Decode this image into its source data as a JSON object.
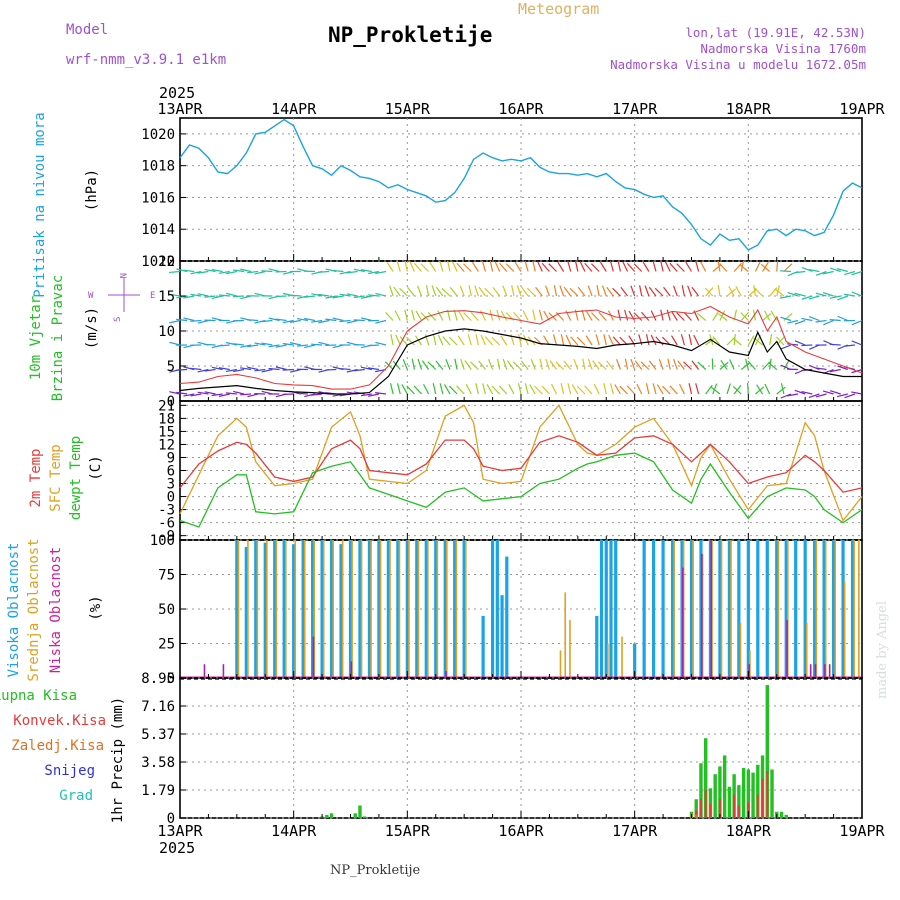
{
  "header": {
    "model_label": "Model",
    "model_name": "wrf-nmm_v3.9.1 e1km",
    "title": "NP_Prokletije",
    "product": "Meteogram",
    "lonlat": "lon,lat (19.91E, 42.53N)",
    "elevation": "Nadmorska Visina 1760m",
    "model_elevation": "Nadmorska Visina u modelu 1672.05m",
    "footer": "NP_Prokletije",
    "signature": "made by Angel",
    "year_top": "2025",
    "year_bottom": "2025"
  },
  "colors": {
    "pressure": "#1aa3e6",
    "t2m": "#e83a3a",
    "sfc_temp": "#e0a020",
    "dewpt": "#22c022",
    "high_cloud": "#1aa3e6",
    "mid_cloud": "#e0a020",
    "low_cloud": "#a020c0",
    "total_precip": "#22c022",
    "conv_precip": "#e83a3a",
    "frozen_precip": "#e07020",
    "snow": "#3030e0",
    "graupel": "#20c0c0",
    "wind_speed": "#000000",
    "gust": "#e83a3a"
  },
  "time_axis": {
    "labels": [
      "13APR",
      "14APR",
      "15APR",
      "16APR",
      "17APR",
      "18APR",
      "19APR"
    ]
  },
  "panels": {
    "pressure": {
      "ylabel_name": "Pritisak na nivou mora",
      "ylabel_unit": "(hPa)",
      "ticks": [
        "1020",
        "1018",
        "1016",
        "1014",
        "1012"
      ]
    },
    "wind": {
      "ylabel_line1": "10m Vjetar",
      "ylabel_line2": "Brzina i Pravac",
      "ylabel_unit": "(m/s)",
      "ticks": [
        "20",
        "15",
        "10",
        "5",
        "0"
      ],
      "compass_n": "N",
      "compass_s": "S",
      "compass_w": "W",
      "compass_e": "E"
    },
    "temperature": {
      "label_t2m": "2m Temp",
      "label_sfc": "SFC Temp",
      "label_dew": "dewpt Temp",
      "ylabel_unit": "(C)",
      "ticks": [
        "21",
        "18",
        "15",
        "12",
        "9",
        "6",
        "3",
        "0",
        "-3",
        "-6",
        "-9"
      ]
    },
    "clouds": {
      "label_high": "Visoka Oblacnost",
      "label_mid": "Srednja Oblacnost",
      "label_low": "Niska Oblacnost",
      "ylabel_unit": "(%)",
      "ticks": [
        "100",
        "75",
        "50",
        "25",
        "0"
      ]
    },
    "precip": {
      "label_total": "Ukupna Kisa",
      "label_conv": "Konvek.Kisa",
      "label_frozen": "Zaledj.Kisa",
      "label_snow": "Snijeg",
      "label_graupel": "Grad",
      "ylabel": "1hr Precip (mm)",
      "ticks": [
        "8.95",
        "7.16",
        "5.37",
        "3.58",
        "1.79",
        "0"
      ]
    }
  },
  "chart_data": [
    {
      "type": "line",
      "name": "pressure",
      "x_range": [
        0,
        144
      ],
      "ylim": [
        1012,
        1021
      ],
      "series": [
        {
          "name": "Pritisak na nivou mora",
          "x": [
            0,
            2,
            4,
            6,
            8,
            10,
            12,
            14,
            16,
            18,
            20,
            22,
            24,
            26,
            28,
            30,
            32,
            34,
            36,
            38,
            40,
            42,
            44,
            46,
            48,
            50,
            52,
            54,
            56,
            58,
            60,
            62,
            64,
            66,
            68,
            70,
            72,
            74,
            76,
            78,
            80,
            82,
            84,
            86,
            88,
            90,
            92,
            94,
            96,
            98,
            100,
            102,
            104,
            106,
            108,
            110,
            112,
            114,
            116,
            118,
            120,
            122,
            124,
            126,
            128,
            130,
            132,
            134,
            136,
            138,
            140,
            142,
            144
          ],
          "y": [
            1018.5,
            1019.3,
            1019.1,
            1018.5,
            1017.6,
            1017.5,
            1018.0,
            1018.8,
            1020.0,
            1020.1,
            1020.5,
            1020.9,
            1020.5,
            1019.2,
            1018.0,
            1017.8,
            1017.4,
            1018.0,
            1017.7,
            1017.3,
            1017.2,
            1017.0,
            1016.6,
            1016.8,
            1016.5,
            1016.3,
            1016.1,
            1015.7,
            1015.8,
            1016.3,
            1017.2,
            1018.4,
            1018.8,
            1018.5,
            1018.3,
            1018.4,
            1018.3,
            1018.5,
            1017.9,
            1017.6,
            1017.5,
            1017.5,
            1017.4,
            1017.5,
            1017.3,
            1017.5,
            1017.0,
            1016.6,
            1016.5,
            1016.2,
            1016.0,
            1016.1,
            1015.4,
            1015.0,
            1014.3,
            1013.4,
            1013.0,
            1013.7,
            1013.3,
            1013.4,
            1012.7,
            1013.0,
            1013.9,
            1014.0,
            1013.6,
            1014.0,
            1013.9,
            1013.6,
            1013.8,
            1014.9,
            1016.4,
            1016.9,
            1016.6
          ]
        }
      ]
    },
    {
      "type": "line",
      "name": "wind",
      "x_range": [
        0,
        144
      ],
      "ylim": [
        0,
        20
      ],
      "series": [
        {
          "name": "wind speed",
          "x": [
            0,
            4,
            8,
            12,
            16,
            20,
            24,
            28,
            32,
            36,
            40,
            44,
            48,
            52,
            56,
            60,
            64,
            68,
            72,
            76,
            80,
            84,
            88,
            92,
            96,
            100,
            104,
            108,
            112,
            116,
            120,
            122,
            124,
            126,
            128,
            132,
            136,
            140,
            144
          ],
          "y": [
            1.5,
            1.8,
            2.0,
            2.2,
            1.8,
            1.5,
            1.3,
            1.2,
            1.0,
            1.0,
            1.2,
            3.5,
            8.0,
            9.2,
            10.0,
            10.3,
            10.0,
            9.5,
            9.0,
            8.2,
            8.0,
            7.8,
            7.5,
            8.0,
            8.2,
            8.5,
            8.0,
            7.2,
            8.8,
            7.0,
            6.5,
            9.8,
            7.0,
            8.5,
            6.0,
            4.5,
            4.0,
            3.5,
            3.5
          ]
        },
        {
          "name": "gust",
          "x": [
            0,
            4,
            8,
            12,
            16,
            20,
            24,
            28,
            32,
            36,
            40,
            44,
            48,
            52,
            56,
            60,
            64,
            68,
            72,
            76,
            80,
            84,
            88,
            92,
            96,
            100,
            104,
            108,
            112,
            116,
            120,
            122,
            124,
            126,
            128,
            132,
            136,
            140,
            144
          ],
          "y": [
            2.5,
            2.7,
            3.5,
            3.8,
            3.3,
            2.5,
            2.3,
            2.2,
            1.7,
            1.7,
            2.3,
            5.0,
            10.0,
            12.0,
            12.8,
            12.9,
            12.6,
            12.0,
            11.5,
            11.0,
            12.5,
            12.8,
            13.0,
            12.0,
            11.8,
            12.0,
            12.8,
            12.5,
            13.5,
            12.0,
            11.0,
            13.0,
            10.0,
            12.0,
            8.5,
            7.0,
            6.0,
            5.0,
            4.0
          ]
        }
      ]
    },
    {
      "type": "line",
      "name": "temperature",
      "x_range": [
        0,
        144
      ],
      "ylim": [
        -10,
        22
      ],
      "series": [
        {
          "name": "2m Temp",
          "x": [
            0,
            4,
            8,
            12,
            14,
            16,
            20,
            24,
            28,
            32,
            36,
            38,
            40,
            44,
            48,
            52,
            56,
            60,
            62,
            64,
            68,
            72,
            76,
            80,
            84,
            86,
            88,
            92,
            96,
            100,
            104,
            108,
            110,
            112,
            116,
            120,
            124,
            128,
            132,
            134,
            136,
            140,
            144
          ],
          "y": [
            2.0,
            7.5,
            10.5,
            12.5,
            12.0,
            10.0,
            4.5,
            3.5,
            4.5,
            11.0,
            13.0,
            11.0,
            6.0,
            5.5,
            5.0,
            7.5,
            13.0,
            13.0,
            11.0,
            7.0,
            6.0,
            6.5,
            12.5,
            14.0,
            12.5,
            11.0,
            9.5,
            10.0,
            13.5,
            14.0,
            12.0,
            8.0,
            10.0,
            12.0,
            8.0,
            3.0,
            4.5,
            5.5,
            9.5,
            8.0,
            6.0,
            1.0,
            2.0
          ]
        },
        {
          "name": "SFC Temp",
          "x": [
            0,
            4,
            8,
            12,
            14,
            16,
            20,
            24,
            28,
            32,
            36,
            38,
            40,
            44,
            48,
            52,
            56,
            60,
            62,
            64,
            68,
            72,
            76,
            80,
            84,
            86,
            88,
            92,
            96,
            100,
            104,
            108,
            110,
            112,
            116,
            120,
            124,
            128,
            132,
            134,
            136,
            140,
            144
          ],
          "y": [
            -4.0,
            5.0,
            14.0,
            18.0,
            16.0,
            8.0,
            2.5,
            3.0,
            4.0,
            16.0,
            19.5,
            14.0,
            4.0,
            3.5,
            3.0,
            6.0,
            18.5,
            21.0,
            17.0,
            4.0,
            3.0,
            3.5,
            16.0,
            21.0,
            12.0,
            10.0,
            9.5,
            12.0,
            16.0,
            18.0,
            12.0,
            2.5,
            9.0,
            12.0,
            4.0,
            -3.0,
            2.5,
            3.0,
            17.0,
            14.0,
            6.0,
            -5.5,
            0.0
          ]
        },
        {
          "name": "dewpt Temp",
          "x": [
            0,
            4,
            8,
            12,
            14,
            16,
            20,
            24,
            28,
            32,
            36,
            38,
            40,
            44,
            48,
            52,
            56,
            60,
            62,
            64,
            68,
            72,
            76,
            80,
            84,
            86,
            88,
            92,
            96,
            100,
            104,
            108,
            110,
            112,
            116,
            120,
            124,
            128,
            132,
            134,
            136,
            140,
            144
          ],
          "y": [
            -5.5,
            -7.0,
            2.0,
            5.0,
            5.0,
            -3.5,
            -4.0,
            -3.5,
            5.5,
            7.0,
            8.0,
            5.0,
            2.0,
            0.5,
            -1.0,
            -2.5,
            1.0,
            2.0,
            0.5,
            -1.0,
            -0.5,
            0.0,
            3.0,
            4.0,
            6.5,
            7.5,
            8.0,
            9.5,
            10.0,
            8.0,
            1.5,
            -1.5,
            4.0,
            7.5,
            1.0,
            -5.0,
            0.0,
            2.0,
            1.5,
            0.0,
            -3.0,
            -6.0,
            -3.0
          ]
        }
      ]
    },
    {
      "type": "bar",
      "name": "clouds",
      "x_range": [
        0,
        144
      ],
      "ylim": [
        0,
        100
      ],
      "series": [
        {
          "name": "Visoka Oblacnost",
          "x": [
            12,
            14,
            16,
            18,
            20,
            22,
            24,
            26,
            28,
            30,
            32,
            34,
            36,
            38,
            40,
            42,
            44,
            46,
            48,
            50,
            52,
            54,
            56,
            58,
            60,
            64,
            66,
            67,
            68,
            69,
            70,
            88,
            89,
            90,
            91,
            92,
            94,
            96,
            98,
            100,
            102,
            104,
            106,
            108,
            110,
            112,
            114,
            116,
            118,
            120,
            122,
            124,
            126,
            128,
            130,
            132,
            134,
            136,
            138,
            140,
            142
          ],
          "y": [
            100,
            95,
            100,
            98,
            100,
            100,
            97,
            100,
            100,
            100,
            100,
            97,
            100,
            100,
            100,
            100,
            100,
            100,
            100,
            100,
            100,
            100,
            100,
            100,
            100,
            45,
            100,
            100,
            60,
            88,
            0,
            45,
            100,
            100,
            100,
            100,
            0,
            25,
            100,
            100,
            100,
            100,
            100,
            100,
            100,
            100,
            100,
            100,
            100,
            100,
            100,
            100,
            100,
            100,
            100,
            100,
            100,
            100,
            100,
            100,
            100
          ]
        },
        {
          "name": "Srednja Oblacnost",
          "x": [
            12,
            14,
            16,
            18,
            20,
            22,
            24,
            26,
            28,
            30,
            32,
            34,
            36,
            38,
            40,
            42,
            44,
            46,
            48,
            50,
            52,
            54,
            56,
            58,
            60,
            80,
            81,
            82,
            90,
            93,
            100,
            104,
            106,
            108,
            110,
            112,
            114,
            116,
            118,
            120,
            122,
            124,
            126,
            128,
            130,
            132,
            134,
            136,
            138,
            140,
            142,
            143
          ],
          "y": [
            100,
            100,
            100,
            100,
            100,
            100,
            100,
            100,
            100,
            100,
            100,
            100,
            100,
            100,
            100,
            100,
            100,
            100,
            100,
            100,
            100,
            100,
            100,
            100,
            100,
            20,
            62,
            42,
            25,
            30,
            0,
            100,
            100,
            100,
            90,
            100,
            100,
            100,
            40,
            20,
            0,
            0,
            100,
            100,
            0,
            40,
            100,
            100,
            100,
            70,
            100,
            100
          ]
        },
        {
          "name": "Niska Oblacnost",
          "x": [
            5,
            9,
            28,
            36,
            56,
            106,
            110,
            112,
            120,
            128,
            133,
            134,
            136,
            137
          ],
          "y": [
            10,
            10,
            30,
            12,
            5,
            80,
            90,
            100,
            10,
            42,
            10,
            10,
            10,
            10
          ]
        }
      ]
    },
    {
      "type": "bar",
      "name": "precip",
      "x_range": [
        0,
        144
      ],
      "ylim": [
        0,
        8.95
      ],
      "series": [
        {
          "name": "Ukupna Kisa",
          "x": [
            30,
            31,
            32,
            37,
            38,
            39,
            108,
            109,
            110,
            111,
            112,
            113,
            114,
            115,
            116,
            117,
            118,
            119,
            120,
            121,
            122,
            123,
            124,
            125,
            126,
            127,
            128
          ],
          "y": [
            0.1,
            0.2,
            0.3,
            0.3,
            0.8,
            0.1,
            0.4,
            1.2,
            3.5,
            5.1,
            1.9,
            2.8,
            3.3,
            4.0,
            2.0,
            2.8,
            2.1,
            3.2,
            3.1,
            2.9,
            3.4,
            4.0,
            8.5,
            3.1,
            0.4,
            0.4,
            0.2
          ]
        },
        {
          "name": "Konvek.Kisa",
          "x": [
            109,
            110,
            111,
            112,
            114,
            117,
            118,
            120,
            122,
            123,
            124
          ],
          "y": [
            0.5,
            1.2,
            1.8,
            0.9,
            1.2,
            1.5,
            0.8,
            1.0,
            1.5,
            2.5,
            3.0
          ]
        },
        {
          "name": "Zaledj.Kisa",
          "x": [
            108,
            109
          ],
          "y": [
            0.3,
            0.2
          ]
        }
      ]
    }
  ]
}
